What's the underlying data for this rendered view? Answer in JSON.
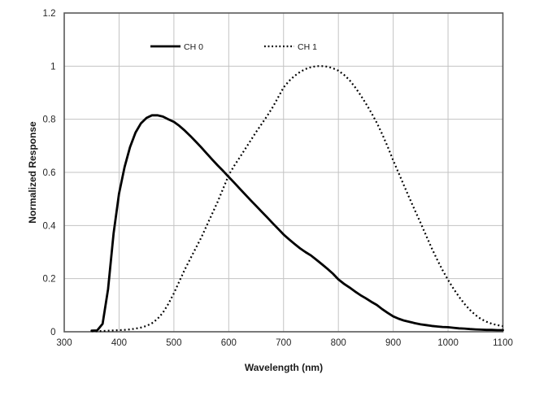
{
  "chart_data": {
    "type": "line",
    "title": "",
    "xlabel": "Wavelength (nm)",
    "ylabel": "Normalized Response",
    "xlim": [
      300,
      1100
    ],
    "ylim": [
      0,
      1.2
    ],
    "x_ticks": [
      300,
      400,
      500,
      600,
      700,
      800,
      900,
      1000,
      1100
    ],
    "y_ticks": [
      0,
      0.2,
      0.4,
      0.6,
      0.8,
      1,
      1.2
    ],
    "grid": true,
    "legend_position": "top-inside-horizontal",
    "x": [
      350,
      360,
      370,
      380,
      390,
      400,
      410,
      420,
      430,
      440,
      450,
      460,
      470,
      480,
      490,
      500,
      510,
      520,
      530,
      540,
      550,
      560,
      570,
      580,
      590,
      600,
      610,
      620,
      630,
      640,
      650,
      660,
      670,
      680,
      690,
      700,
      710,
      720,
      730,
      740,
      750,
      760,
      770,
      780,
      790,
      800,
      810,
      820,
      830,
      840,
      850,
      860,
      870,
      880,
      890,
      900,
      910,
      920,
      930,
      940,
      950,
      960,
      970,
      980,
      990,
      1000,
      1010,
      1020,
      1030,
      1040,
      1050,
      1060,
      1070,
      1080,
      1090,
      1100
    ],
    "series": [
      {
        "name": "CH 0",
        "line_style": "solid",
        "color": "#000000",
        "values": [
          0.004,
          0.005,
          0.03,
          0.16,
          0.37,
          0.52,
          0.62,
          0.695,
          0.75,
          0.785,
          0.805,
          0.815,
          0.815,
          0.81,
          0.8,
          0.79,
          0.775,
          0.757,
          0.737,
          0.716,
          0.694,
          0.671,
          0.648,
          0.626,
          0.605,
          0.583,
          0.561,
          0.539,
          0.517,
          0.495,
          0.474,
          0.452,
          0.431,
          0.409,
          0.388,
          0.366,
          0.348,
          0.331,
          0.314,
          0.3,
          0.287,
          0.271,
          0.254,
          0.237,
          0.219,
          0.197,
          0.181,
          0.167,
          0.152,
          0.138,
          0.126,
          0.113,
          0.101,
          0.085,
          0.071,
          0.058,
          0.049,
          0.042,
          0.037,
          0.032,
          0.028,
          0.025,
          0.022,
          0.02,
          0.018,
          0.017,
          0.015,
          0.013,
          0.012,
          0.01,
          0.009,
          0.008,
          0.007,
          0.007,
          0.006,
          0.006
        ]
      },
      {
        "name": "CH 1",
        "line_style": "dotted",
        "color": "#000000",
        "values": [
          0.002,
          0.002,
          0.003,
          0.004,
          0.005,
          0.006,
          0.007,
          0.009,
          0.012,
          0.016,
          0.022,
          0.032,
          0.048,
          0.072,
          0.105,
          0.145,
          0.19,
          0.235,
          0.275,
          0.315,
          0.355,
          0.4,
          0.445,
          0.49,
          0.54,
          0.59,
          0.625,
          0.656,
          0.688,
          0.72,
          0.752,
          0.782,
          0.812,
          0.845,
          0.882,
          0.92,
          0.944,
          0.963,
          0.978,
          0.989,
          0.996,
          1.0,
          1.0,
          0.998,
          0.992,
          0.983,
          0.968,
          0.948,
          0.922,
          0.892,
          0.86,
          0.825,
          0.787,
          0.744,
          0.696,
          0.645,
          0.597,
          0.549,
          0.501,
          0.455,
          0.41,
          0.362,
          0.316,
          0.272,
          0.232,
          0.195,
          0.162,
          0.132,
          0.105,
          0.082,
          0.063,
          0.048,
          0.038,
          0.03,
          0.025,
          0.021
        ]
      }
    ]
  },
  "colors": {
    "background": "#ffffff",
    "plot_border": "#595959",
    "gridline": "#c3c3c3",
    "tick_text": "#262626",
    "curve": "#000000"
  }
}
